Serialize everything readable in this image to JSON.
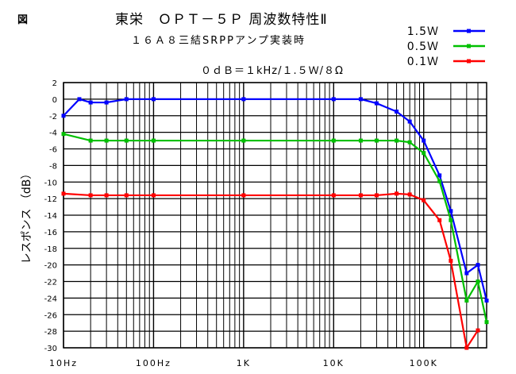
{
  "fig_mark": "図",
  "chart_data": {
    "type": "line",
    "title": "東栄　ＯＰＴ－５Ｐ 周波数特性Ⅱ",
    "subtitle": "１６Ａ８三結SRPPアンプ実装時",
    "reference": "０ｄＢ＝１kHz/１.５Ｗ/８Ω",
    "ylabel": "レスポンス （dB）",
    "xlabel": "",
    "xscale": "log",
    "xlim": [
      10,
      500000
    ],
    "ylim": [
      -30,
      2
    ],
    "yticks": [
      2,
      0,
      -2,
      -4,
      -6,
      -8,
      -10,
      -12,
      -14,
      -16,
      -18,
      -20,
      -22,
      -24,
      -26,
      -28,
      -30
    ],
    "xtick_labels": [
      {
        "value": 10,
        "label": "10Hz"
      },
      {
        "value": 100,
        "label": "100Hz"
      },
      {
        "value": 1000,
        "label": "1K"
      },
      {
        "value": 10000,
        "label": "10K"
      },
      {
        "value": 100000,
        "label": "100K"
      }
    ],
    "grid": true,
    "legend_position": "top-right",
    "series": [
      {
        "name": "1.5Ｗ",
        "color": "#0000ff",
        "x": [
          10,
          15,
          20,
          30,
          50,
          100,
          1000,
          10000,
          20000,
          30000,
          50000,
          70000,
          100000,
          150000,
          200000,
          300000,
          400000,
          500000
        ],
        "y": [
          -2,
          0,
          -0.4,
          -0.4,
          0,
          0,
          0,
          0,
          0,
          -0.5,
          -1.5,
          -2.7,
          -5,
          -9.2,
          -13.5,
          -21,
          -20,
          -24.3
        ]
      },
      {
        "name": "0.5Ｗ",
        "color": "#00c000",
        "x": [
          10,
          20,
          30,
          50,
          100,
          1000,
          10000,
          20000,
          30000,
          50000,
          70000,
          100000,
          150000,
          200000,
          300000,
          400000,
          500000
        ],
        "y": [
          -4.2,
          -5,
          -5,
          -5,
          -5,
          -5,
          -5,
          -5,
          -5,
          -5,
          -5.2,
          -6.5,
          -9.9,
          -14.6,
          -24.3,
          -22,
          -26.9
        ]
      },
      {
        "name": "0.1Ｗ",
        "color": "#ff0000",
        "x": [
          10,
          20,
          30,
          50,
          100,
          1000,
          10000,
          20000,
          30000,
          50000,
          70000,
          100000,
          150000,
          200000,
          300000,
          400000
        ],
        "y": [
          -11.4,
          -11.6,
          -11.6,
          -11.6,
          -11.6,
          -11.6,
          -11.6,
          -11.6,
          -11.6,
          -11.4,
          -11.5,
          -12.2,
          -14.6,
          -19.5,
          -30,
          -27.9
        ]
      }
    ]
  }
}
